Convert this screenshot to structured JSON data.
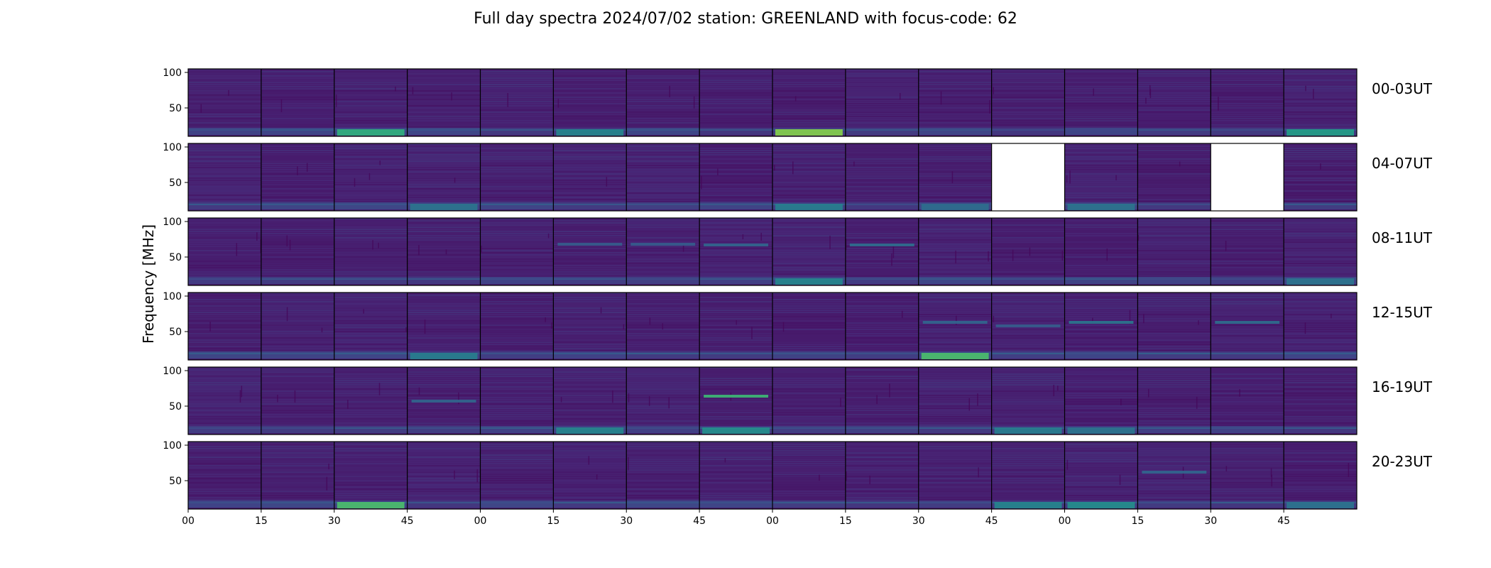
{
  "chart_data": {
    "type": "heatmap",
    "title": "Full day spectra 2024/07/02 station: GREENLAND with focus-code: 62",
    "ylabel": "Frequency [MHz]",
    "ylim": [
      10,
      105
    ],
    "yticks": [
      "100",
      "50"
    ],
    "ytick_values": [
      100,
      50
    ],
    "xticks": [
      "00",
      "15",
      "30",
      "45",
      "00",
      "15",
      "30",
      "45",
      "00",
      "15",
      "30",
      "45",
      "00",
      "15",
      "30",
      "45"
    ],
    "colormap": "viridis",
    "colormap_stops": [
      "#440154",
      "#482878",
      "#3e4989",
      "#31688e",
      "#26828e",
      "#1f9e89",
      "#35b779",
      "#6ece58",
      "#b5de2b",
      "#fde725"
    ],
    "missing_color": "#ffffff",
    "panels_per_row": 16,
    "rows": [
      {
        "label": "00-03UT",
        "missing": [],
        "strong_low_band": [
          2,
          8,
          15
        ],
        "features": [
          {
            "panel": 2,
            "kind": "low_band",
            "intensity": 0.7
          },
          {
            "panel": 5,
            "kind": "low_band",
            "intensity": 0.45
          },
          {
            "panel": 8,
            "kind": "low_band",
            "intensity": 0.95
          },
          {
            "panel": 15,
            "kind": "low_band",
            "intensity": 0.6
          }
        ]
      },
      {
        "label": "04-07UT",
        "missing": [
          11,
          14
        ],
        "strong_low_band": [],
        "features": [
          {
            "panel": 3,
            "kind": "low_band",
            "intensity": 0.35
          },
          {
            "panel": 8,
            "kind": "low_band",
            "intensity": 0.4
          },
          {
            "panel": 10,
            "kind": "low_band",
            "intensity": 0.3
          },
          {
            "panel": 12,
            "kind": "low_band",
            "intensity": 0.35
          }
        ]
      },
      {
        "label": "08-11UT",
        "missing": [],
        "strong_low_band": [],
        "features": [
          {
            "panel": 5,
            "kind": "band",
            "freq": 68,
            "intensity": 0.25
          },
          {
            "panel": 6,
            "kind": "band",
            "freq": 68,
            "intensity": 0.25
          },
          {
            "panel": 7,
            "kind": "band",
            "freq": 67,
            "intensity": 0.3
          },
          {
            "panel": 8,
            "kind": "low_band",
            "intensity": 0.45
          },
          {
            "panel": 9,
            "kind": "band",
            "freq": 67,
            "intensity": 0.35
          },
          {
            "panel": 15,
            "kind": "low_band",
            "intensity": 0.35
          }
        ]
      },
      {
        "label": "12-15UT",
        "missing": [],
        "strong_low_band": [
          10
        ],
        "features": [
          {
            "panel": 3,
            "kind": "low_band",
            "intensity": 0.4
          },
          {
            "panel": 10,
            "kind": "low_band",
            "intensity": 0.8
          },
          {
            "panel": 10,
            "kind": "band",
            "freq": 63,
            "intensity": 0.3
          },
          {
            "panel": 11,
            "kind": "band",
            "freq": 58,
            "intensity": 0.25
          },
          {
            "panel": 12,
            "kind": "band",
            "freq": 63,
            "intensity": 0.4
          },
          {
            "panel": 14,
            "kind": "band",
            "freq": 63,
            "intensity": 0.35
          }
        ]
      },
      {
        "label": "16-19UT",
        "missing": [],
        "strong_low_band": [
          7
        ],
        "features": [
          {
            "panel": 3,
            "kind": "band",
            "freq": 57,
            "intensity": 0.3
          },
          {
            "panel": 5,
            "kind": "low_band",
            "intensity": 0.45
          },
          {
            "panel": 7,
            "kind": "band",
            "freq": 64,
            "intensity": 0.8
          },
          {
            "panel": 7,
            "kind": "low_band",
            "intensity": 0.5
          },
          {
            "panel": 11,
            "kind": "low_band",
            "intensity": 0.4
          },
          {
            "panel": 12,
            "kind": "low_band",
            "intensity": 0.35
          }
        ]
      },
      {
        "label": "20-23UT",
        "missing": [],
        "strong_low_band": [
          2
        ],
        "features": [
          {
            "panel": 2,
            "kind": "low_band",
            "intensity": 0.8
          },
          {
            "panel": 11,
            "kind": "low_band",
            "intensity": 0.45
          },
          {
            "panel": 12,
            "kind": "low_band",
            "intensity": 0.5
          },
          {
            "panel": 13,
            "kind": "band",
            "freq": 62,
            "intensity": 0.3
          },
          {
            "panel": 15,
            "kind": "low_band",
            "intensity": 0.35
          }
        ]
      }
    ]
  }
}
